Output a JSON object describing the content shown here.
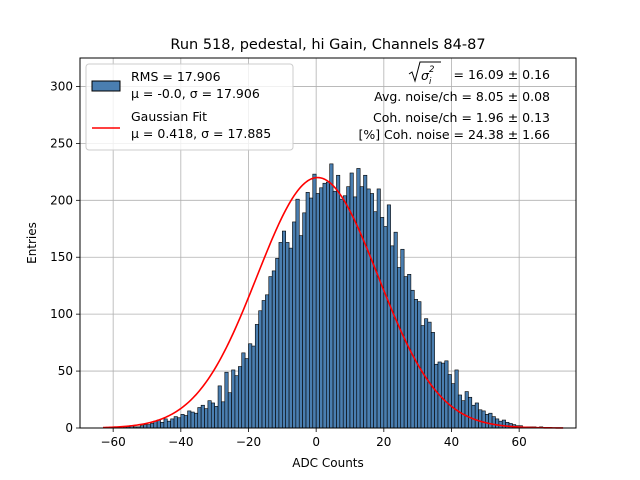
{
  "chart_data": {
    "type": "bar",
    "title": "Run 518, pedestal, hi Gain, Channels 84-87",
    "xlabel": "ADC Counts",
    "ylabel": "Entries",
    "xlim": [
      -69.8,
      76.8
    ],
    "ylim": [
      0,
      325
    ],
    "xticks": [
      -60,
      -40,
      -20,
      0,
      20,
      40,
      60
    ],
    "xtick_labels": [
      "−60",
      "−40",
      "−20",
      "0",
      "20",
      "40",
      "60"
    ],
    "yticks": [
      0,
      50,
      100,
      150,
      200,
      250,
      300
    ],
    "ytick_labels": [
      "0",
      "50",
      "100",
      "150",
      "200",
      "250",
      "300"
    ],
    "grid": true,
    "legend_position": "top-left",
    "colors": {
      "hist_fill": "#4a7eb0",
      "hist_edge": "#000000",
      "fit_line": "#ff0000",
      "grid": "#b0b0b0"
    },
    "histogram": {
      "bin_width": 1,
      "bins_start": -63,
      "values": [
        0,
        0,
        0,
        0,
        1,
        0,
        1,
        1,
        2,
        1,
        1,
        2,
        3,
        3,
        4,
        6,
        7,
        5,
        8,
        6,
        8,
        10,
        9,
        12,
        11,
        15,
        14,
        13,
        18,
        20,
        17,
        24,
        22,
        19,
        37,
        23,
        49,
        31,
        51,
        46,
        54,
        66,
        61,
        74,
        72,
        91,
        103,
        112,
        117,
        133,
        138,
        149,
        163,
        173,
        163,
        158,
        181,
        201,
        169,
        189,
        207,
        202,
        223,
        206,
        211,
        215,
        216,
        232,
        208,
        222,
        201,
        204,
        212,
        224,
        203,
        228,
        212,
        222,
        210,
        206,
        190,
        210,
        185,
        177,
        196,
        160,
        172,
        141,
        157,
        133,
        135,
        121,
        113,
        111,
        90,
        96,
        93,
        84,
        56,
        58,
        57,
        59,
        47,
        39,
        51,
        29,
        24,
        32,
        27,
        20,
        22,
        16,
        15,
        12,
        13,
        10,
        8,
        6,
        7,
        5,
        4,
        3,
        2,
        2,
        1,
        1,
        1,
        1,
        0,
        1,
        0,
        0,
        0,
        0,
        0,
        0
      ]
    },
    "series": [
      {
        "name": "Gaussian Fit",
        "type": "line",
        "mu": 0.418,
        "sigma": 17.885,
        "amplitude": 220
      }
    ],
    "legend": {
      "hist_line1": "RMS = 17.906",
      "hist_line2": "μ = -0.0, σ = 17.906",
      "fit_line1": "Gaussian Fit",
      "fit_line2": "μ = 0.418, σ = 17.885"
    },
    "annotations": {
      "sigma_value": " = 16.09 ± 0.16",
      "avg_noise": "Avg. noise/ch = 8.05 ± 0.08",
      "coh_noise": "Coh. noise/ch = 1.96 ± 0.13",
      "coh_percent": "[%] Coh. noise = 24.38 ± 1.66"
    }
  }
}
